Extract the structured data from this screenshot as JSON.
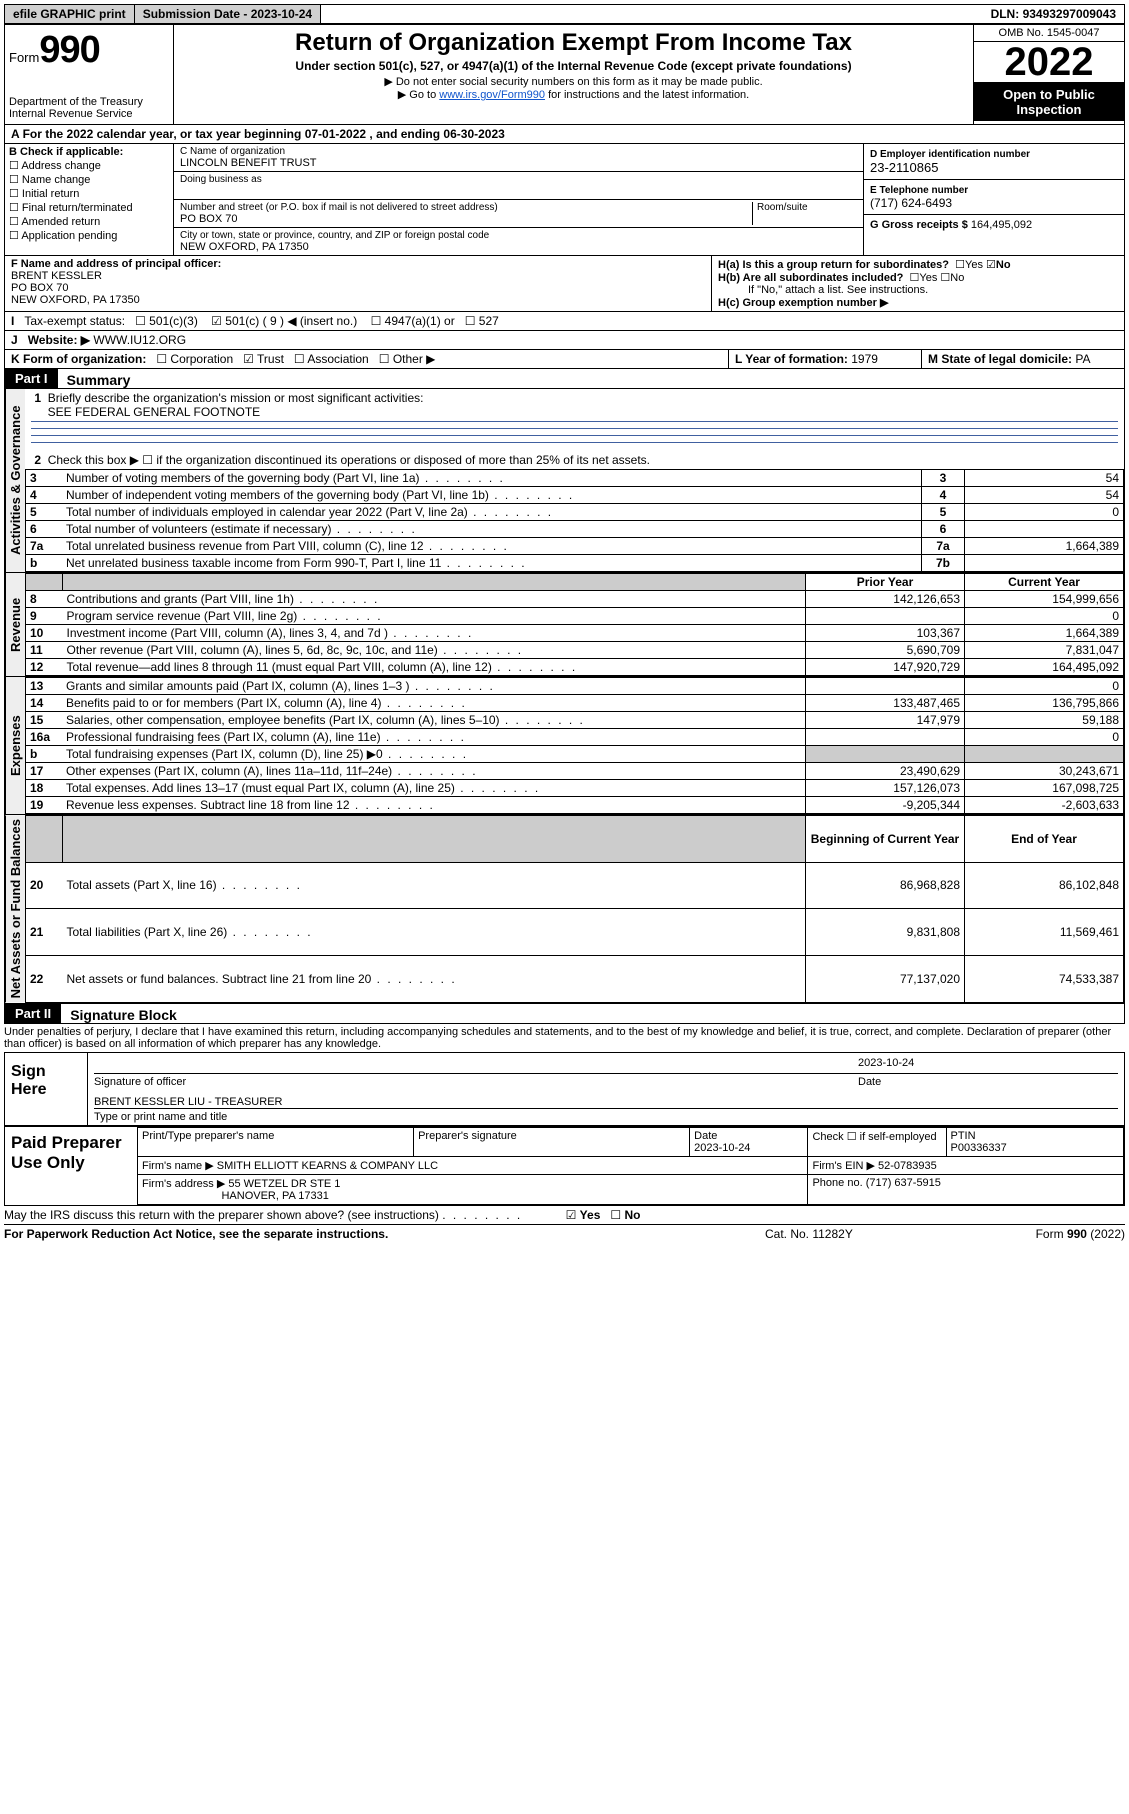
{
  "topbar": {
    "efile": "efile GRAPHIC print",
    "subdate_lbl": "Submission Date - ",
    "subdate": "2023-10-24",
    "dln_lbl": "DLN: ",
    "dln": "93493297009043"
  },
  "head": {
    "form_prefix": "Form",
    "form_no": "990",
    "dept": "Department of the Treasury",
    "irs": "Internal Revenue Service",
    "title": "Return of Organization Exempt From Income Tax",
    "sub1": "Under section 501(c), 527, or 4947(a)(1) of the Internal Revenue Code (except private foundations)",
    "sub2": "▶ Do not enter social security numbers on this form as it may be made public.",
    "sub3_pre": "▶ Go to ",
    "sub3_link": "www.irs.gov/Form990",
    "sub3_post": " for instructions and the latest information.",
    "omb": "OMB No. 1545-0047",
    "year": "2022",
    "open": "Open to Public Inspection"
  },
  "A": {
    "text_pre": "For the 2022 calendar year, or tax year beginning ",
    "begin": "07-01-2022",
    "mid": "   , and ending ",
    "end": "06-30-2023"
  },
  "B": {
    "hdr": "B Check if applicable:",
    "opts": [
      "Address change",
      "Name change",
      "Initial return",
      "Final return/terminated",
      "Amended return",
      "Application pending"
    ]
  },
  "C": {
    "name_lbl": "C Name of organization",
    "name": "LINCOLN BENEFIT TRUST",
    "dba_lbl": "Doing business as",
    "dba": "",
    "addr_lbl": "Number and street (or P.O. box if mail is not delivered to street address)",
    "room_lbl": "Room/suite",
    "addr": "PO BOX 70",
    "city_lbl": "City or town, state or province, country, and ZIP or foreign postal code",
    "city": "NEW OXFORD, PA  17350"
  },
  "D": {
    "lbl": "D Employer identification number",
    "val": "23-2110865"
  },
  "E": {
    "lbl": "E Telephone number",
    "val": "(717) 624-6493"
  },
  "G": {
    "lbl": "G Gross receipts $ ",
    "val": "164,495,092"
  },
  "F": {
    "lbl": "F  Name and address of principal officer:",
    "name": "BRENT KESSLER",
    "addr1": "PO BOX 70",
    "addr2": "NEW OXFORD, PA  17350"
  },
  "H": {
    "a": "H(a)  Is this a group return for subordinates?",
    "b": "H(b)  Are all subordinates included?",
    "b2": "If \"No,\" attach a list. See instructions.",
    "c": "H(c)  Group exemption number ▶",
    "yes": "Yes",
    "no": "No"
  },
  "I": {
    "lbl": "Tax-exempt status:",
    "o1": "501(c)(3)",
    "o2a": "501(c) ( ",
    "o2n": "9",
    "o2b": " ) ◀ (insert no.)",
    "o3": "4947(a)(1) or",
    "o4": "527"
  },
  "J": {
    "lbl": "Website: ▶ ",
    "val": "WWW.IU12.ORG"
  },
  "K": {
    "lbl": "K Form of organization:",
    "opts": [
      "Corporation",
      "Trust",
      "Association",
      "Other ▶"
    ]
  },
  "L": {
    "lbl": "L Year of formation: ",
    "val": "1979"
  },
  "M": {
    "lbl": "M State of legal domicile: ",
    "val": "PA"
  },
  "part1": {
    "bar": "Part I",
    "title": "Summary",
    "l1": "Briefly describe the organization's mission or most significant activities:",
    "l1v": "SEE FEDERAL GENERAL FOOTNOTE",
    "l2": "Check this box ▶ ☐  if the organization discontinued its operations or disposed of more than 25% of its net assets.",
    "sidebars": {
      "ag": "Activities & Governance",
      "rev": "Revenue",
      "exp": "Expenses",
      "na": "Net Assets or Fund Balances"
    },
    "cols": {
      "py": "Prior Year",
      "cy": "Current Year",
      "bcy": "Beginning of Current Year",
      "eoy": "End of Year"
    },
    "rows_ag": [
      {
        "n": "3",
        "d": "Number of voting members of the governing body (Part VI, line 1a)",
        "box": "3",
        "v": "54"
      },
      {
        "n": "4",
        "d": "Number of independent voting members of the governing body (Part VI, line 1b)",
        "box": "4",
        "v": "54"
      },
      {
        "n": "5",
        "d": "Total number of individuals employed in calendar year 2022 (Part V, line 2a)",
        "box": "5",
        "v": "0"
      },
      {
        "n": "6",
        "d": "Total number of volunteers (estimate if necessary)",
        "box": "6",
        "v": ""
      },
      {
        "n": "7a",
        "d": "Total unrelated business revenue from Part VIII, column (C), line 12",
        "box": "7a",
        "v": "1,664,389"
      },
      {
        "n": "b",
        "d": "Net unrelated business taxable income from Form 990-T, Part I, line 11",
        "box": "7b",
        "v": ""
      }
    ],
    "rows_rev": [
      {
        "n": "8",
        "d": "Contributions and grants (Part VIII, line 1h)",
        "py": "142,126,653",
        "cy": "154,999,656"
      },
      {
        "n": "9",
        "d": "Program service revenue (Part VIII, line 2g)",
        "py": "",
        "cy": "0"
      },
      {
        "n": "10",
        "d": "Investment income (Part VIII, column (A), lines 3, 4, and 7d )",
        "py": "103,367",
        "cy": "1,664,389"
      },
      {
        "n": "11",
        "d": "Other revenue (Part VIII, column (A), lines 5, 6d, 8c, 9c, 10c, and 11e)",
        "py": "5,690,709",
        "cy": "7,831,047"
      },
      {
        "n": "12",
        "d": "Total revenue—add lines 8 through 11 (must equal Part VIII, column (A), line 12)",
        "py": "147,920,729",
        "cy": "164,495,092"
      }
    ],
    "rows_exp": [
      {
        "n": "13",
        "d": "Grants and similar amounts paid (Part IX, column (A), lines 1–3 )",
        "py": "",
        "cy": "0"
      },
      {
        "n": "14",
        "d": "Benefits paid to or for members (Part IX, column (A), line 4)",
        "py": "133,487,465",
        "cy": "136,795,866"
      },
      {
        "n": "15",
        "d": "Salaries, other compensation, employee benefits (Part IX, column (A), lines 5–10)",
        "py": "147,979",
        "cy": "59,188"
      },
      {
        "n": "16a",
        "d": "Professional fundraising fees (Part IX, column (A), line 11e)",
        "py": "",
        "cy": "0"
      },
      {
        "n": "b",
        "d": "Total fundraising expenses (Part IX, column (D), line 25) ▶0",
        "py": "shade",
        "cy": "shade"
      },
      {
        "n": "17",
        "d": "Other expenses (Part IX, column (A), lines 11a–11d, 11f–24e)",
        "py": "23,490,629",
        "cy": "30,243,671"
      },
      {
        "n": "18",
        "d": "Total expenses. Add lines 13–17 (must equal Part IX, column (A), line 25)",
        "py": "157,126,073",
        "cy": "167,098,725"
      },
      {
        "n": "19",
        "d": "Revenue less expenses. Subtract line 18 from line 12",
        "py": "-9,205,344",
        "cy": "-2,603,633"
      }
    ],
    "rows_na": [
      {
        "n": "20",
        "d": "Total assets (Part X, line 16)",
        "py": "86,968,828",
        "cy": "86,102,848"
      },
      {
        "n": "21",
        "d": "Total liabilities (Part X, line 26)",
        "py": "9,831,808",
        "cy": "11,569,461"
      },
      {
        "n": "22",
        "d": "Net assets or fund balances. Subtract line 21 from line 20",
        "py": "77,137,020",
        "cy": "74,533,387"
      }
    ]
  },
  "part2": {
    "bar": "Part II",
    "title": "Signature Block",
    "decl": "Under penalties of perjury, I declare that I have examined this return, including accompanying schedules and statements, and to the best of my knowledge and belief, it is true, correct, and complete. Declaration of preparer (other than officer) is based on all information of which preparer has any knowledge."
  },
  "sign": {
    "here": "Sign Here",
    "sig_lbl": "Signature of officer",
    "date_lbl": "Date",
    "date": "2023-10-24",
    "name": "BRENT KESSLER  LIU - TREASURER",
    "name_lbl": "Type or print name and title"
  },
  "prep": {
    "title": "Paid Preparer Use Only",
    "pt_name_lbl": "Print/Type preparer's name",
    "pt_sig_lbl": "Preparer's signature",
    "date_lbl": "Date",
    "date": "2023-10-24",
    "check_lbl": "Check ☐ if self-employed",
    "ptin_lbl": "PTIN",
    "ptin": "P00336337",
    "firm_name_lbl": "Firm's name    ▶ ",
    "firm_name": "SMITH ELLIOTT KEARNS & COMPANY LLC",
    "firm_ein_lbl": "Firm's EIN ▶ ",
    "firm_ein": "52-0783935",
    "firm_addr_lbl": "Firm's address ▶ ",
    "firm_addr1": "55 WETZEL DR STE 1",
    "firm_addr2": "HANOVER, PA  17331",
    "phone_lbl": "Phone no. ",
    "phone": "(717) 637-5915"
  },
  "discuss": {
    "q": "May the IRS discuss this return with the preparer shown above? (see instructions)",
    "yes": "Yes",
    "no": "No"
  },
  "foot": {
    "l": "For Paperwork Reduction Act Notice, see the separate instructions.",
    "m": "Cat. No. 11282Y",
    "r": "Form 990 (2022)"
  }
}
